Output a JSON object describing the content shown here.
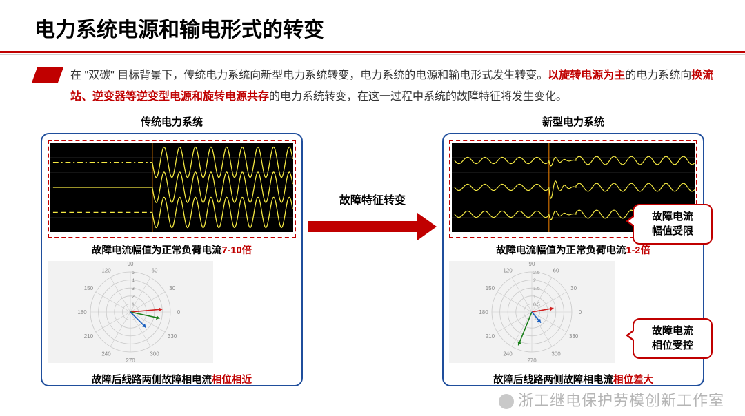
{
  "title": "电力系统电源和输电形式的转变",
  "intro": {
    "seg1": "在 \"双碳\" 目标背景下，传统电力系统向新型电力系统转变，电力系统的电源和输电形式发生转变。",
    "red1": "以旋转电源为主",
    "seg2": "的电力系统向",
    "red2": "换流站、逆变器等逆变型电源和旋转电源共存",
    "seg3": "的电力系统转变，在这一过程中系统的故障特征将发生变化。"
  },
  "left_panel": {
    "title": "传统电力系统",
    "waveform": {
      "background": "#000000",
      "wave_color": "#f5e942",
      "grid_color": "#2b2b2b",
      "fault_line_color": "#d07000",
      "traces": [
        {
          "baseline": 0.22,
          "pre_style": "dashdot",
          "pre_amp": 0.0,
          "post_amp": 0.17,
          "freq": 9
        },
        {
          "baseline": 0.5,
          "pre_style": "solid",
          "pre_amp": 0.0,
          "post_amp": 0.17,
          "freq": 9
        },
        {
          "baseline": 0.78,
          "pre_style": "dash",
          "pre_amp": 0.0,
          "post_amp": 0.17,
          "freq": 9
        }
      ],
      "fault_x": 0.42
    },
    "caption1_pre": "故障电流幅值为正常负荷电流",
    "caption1_red": "7-10倍",
    "polar": {
      "background": "#f2f2f2",
      "circle_color": "#c9c9c9",
      "label_color": "#8a8a8a",
      "rings": 5,
      "ring_labels": [
        "1",
        "2",
        "3",
        "4",
        "5"
      ],
      "angle_step": 30,
      "angle_labels": [
        "0",
        "30",
        "60",
        "90",
        "120",
        "150",
        "180",
        "210",
        "240",
        "270",
        "300",
        "330"
      ],
      "vectors": [
        {
          "angle_deg": 5,
          "mag": 0.8,
          "color": "#d02020"
        },
        {
          "angle_deg": 348,
          "mag": 0.75,
          "color": "#1a7f1a"
        },
        {
          "angle_deg": 315,
          "mag": 0.55,
          "color": "#1a5fbf"
        }
      ]
    },
    "caption2_pre": "故障后线路两侧故障相电流",
    "caption2_red": "相位相近"
  },
  "arrow": {
    "label": "故障特征转变",
    "color": "#c00000",
    "shaft_width": 16,
    "head_width": 40,
    "length": 186
  },
  "right_panel": {
    "title": "新型电力系统",
    "waveform": {
      "background": "#000000",
      "wave_color": "#f5e942",
      "grid_color": "#2b2b2b",
      "fault_line_color": "#d07000",
      "traces": [
        {
          "baseline": 0.2,
          "pre_amp": 0.035,
          "transient_amp": 0.08,
          "post_amp": 0.045,
          "freq": 14
        },
        {
          "baseline": 0.5,
          "pre_amp": 0.035,
          "transient_amp": 0.16,
          "post_amp": 0.045,
          "freq": 14
        },
        {
          "baseline": 0.8,
          "pre_amp": 0.035,
          "transient_amp": 0.08,
          "post_amp": 0.045,
          "freq": 14
        }
      ],
      "fault_x": 0.4
    },
    "caption1_pre": "故障电流幅值为正常负荷电流",
    "caption1_red": "1-2倍",
    "polar": {
      "background": "#f2f2f2",
      "circle_color": "#c9c9c9",
      "label_color": "#8a8a8a",
      "rings": 5,
      "ring_labels": [
        "0.5",
        "1",
        "1.5",
        "2",
        "2.5"
      ],
      "angle_step": 30,
      "angle_labels": [
        "0",
        "30",
        "60",
        "90",
        "120",
        "150",
        "180",
        "210",
        "240",
        "270",
        "300",
        "330"
      ],
      "vectors": [
        {
          "angle_deg": 10,
          "mag": 0.55,
          "color": "#d02020"
        },
        {
          "angle_deg": 248,
          "mag": 0.9,
          "color": "#1a7f1a"
        },
        {
          "angle_deg": 310,
          "mag": 0.35,
          "color": "#1a5fbf"
        }
      ]
    },
    "caption2_pre": "故障后线路两侧故障相电流",
    "caption2_red": "相位差大"
  },
  "callout1": "故障电流\n幅值受限",
  "callout2": "故障电流\n相位受控",
  "watermark": "浙工继电保护劳模创新工作室",
  "colors": {
    "title_red": "#c00000",
    "panel_border": "#1f4e9c",
    "dash_red": "#c00000"
  }
}
